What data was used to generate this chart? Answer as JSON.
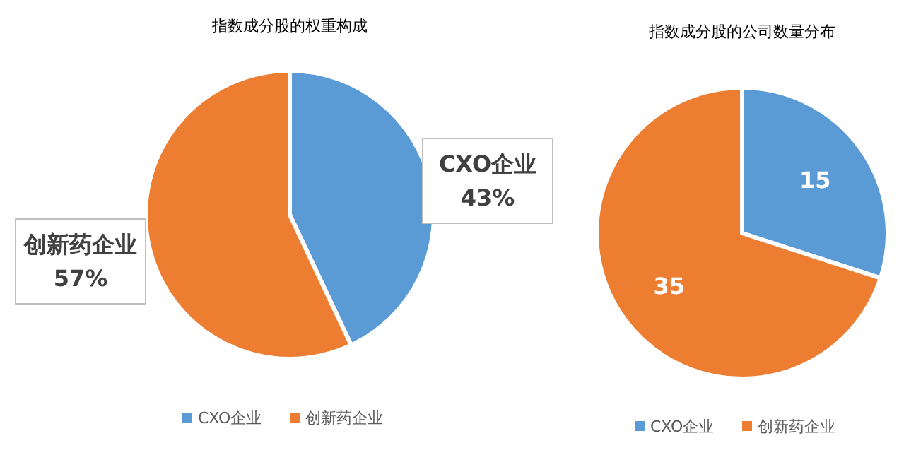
{
  "chart_data": [
    {
      "type": "pie",
      "title": "指数成分股的权重构成",
      "categories": [
        "CXO企业",
        "创新药企业"
      ],
      "values": [
        43,
        57
      ],
      "colors": [
        "#5b9bd5",
        "#ed7d31"
      ],
      "value_labels": [
        "CXO企业\n43%",
        "创新药企业\n57%"
      ],
      "legend": "bottom"
    },
    {
      "type": "pie",
      "title": "指数成分股的公司数量分布",
      "categories": [
        "CXO企业",
        "创新药企业"
      ],
      "values": [
        15,
        35
      ],
      "colors": [
        "#5b9bd5",
        "#ed7d31"
      ],
      "data_labels": true,
      "legend": "bottom"
    }
  ]
}
